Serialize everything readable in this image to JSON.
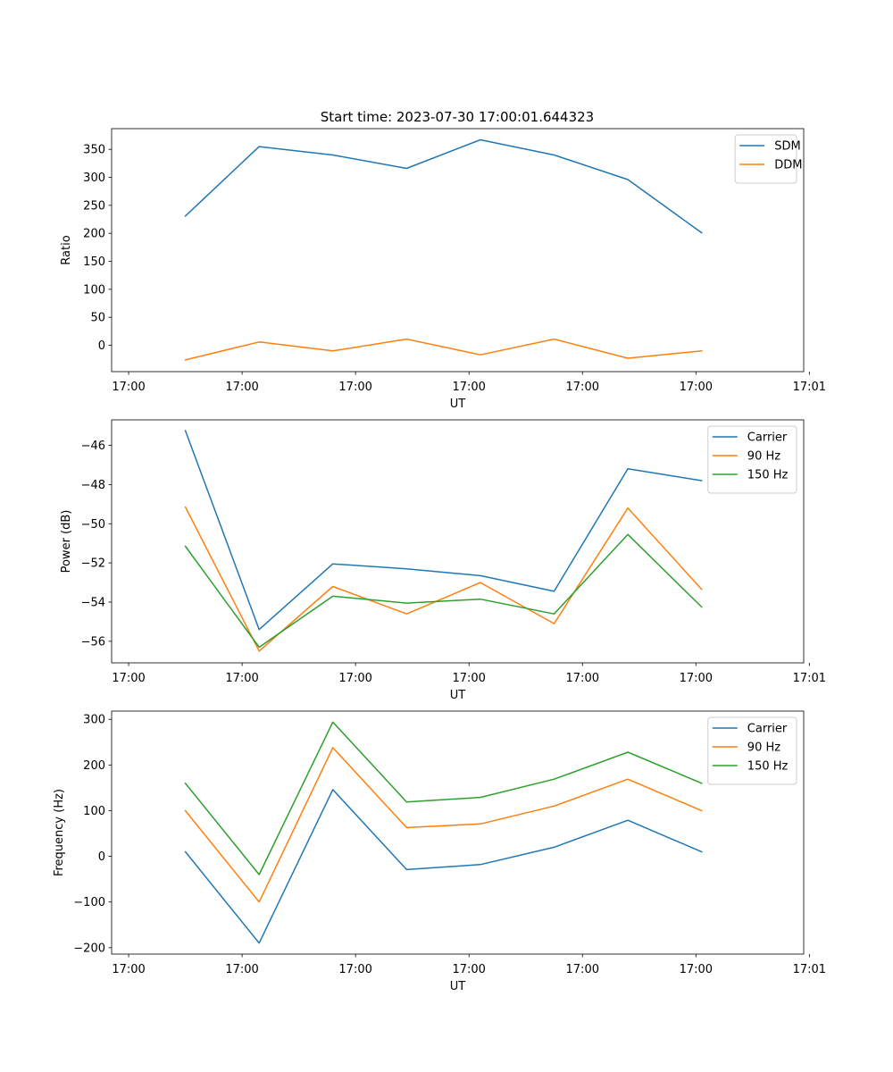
{
  "figure_title": "Start time: 2023-07-30 17:00:01.644323",
  "x_tick_labels": [
    "17:00",
    "17:00",
    "17:00",
    "17:00",
    "17:00",
    "17:00",
    "17:01"
  ],
  "colors": {
    "blue": "#1f77b4",
    "orange": "#ff7f0e",
    "green": "#2ca02c"
  },
  "chart_data": [
    {
      "type": "line",
      "title": "Start time: 2023-07-30 17:00:01.644323",
      "xlabel": "UT",
      "ylabel": "Ratio",
      "x": [
        0.5,
        1.15,
        1.8,
        2.45,
        3.1,
        3.75,
        4.4,
        5.05
      ],
      "xlim": [
        -0.15,
        5.95
      ],
      "ylim": [
        -47,
        387
      ],
      "yticks": [
        0,
        50,
        100,
        150,
        200,
        250,
        300,
        350
      ],
      "ytick_labels": [
        "0",
        "50",
        "100",
        "150",
        "200",
        "250",
        "300",
        "350"
      ],
      "legend_location": "top-right",
      "series": [
        {
          "name": "SDM",
          "color": "#1f77b4",
          "values": [
            231,
            355,
            340,
            316,
            367,
            340,
            296,
            201
          ]
        },
        {
          "name": "DDM",
          "color": "#ff7f0e",
          "values": [
            -26,
            6,
            -10,
            11,
            -17,
            11,
            -23,
            -10
          ]
        }
      ]
    },
    {
      "type": "line",
      "title": "",
      "xlabel": "UT",
      "ylabel": "Power (dB)",
      "x": [
        0.5,
        1.15,
        1.8,
        2.45,
        3.1,
        3.75,
        4.4,
        5.05
      ],
      "xlim": [
        -0.15,
        5.95
      ],
      "ylim": [
        -57.1,
        -44.7
      ],
      "yticks": [
        -56,
        -54,
        -52,
        -50,
        -48,
        -46
      ],
      "ytick_labels": [
        "−56",
        "−54",
        "−52",
        "−50",
        "−48",
        "−46"
      ],
      "legend_location": "top-right",
      "series": [
        {
          "name": "Carrier",
          "color": "#1f77b4",
          "values": [
            -45.25,
            -55.4,
            -52.05,
            -52.3,
            -52.65,
            -53.45,
            -47.2,
            -47.8
          ]
        },
        {
          "name": "90 Hz",
          "color": "#ff7f0e",
          "values": [
            -49.15,
            -56.5,
            -53.2,
            -54.6,
            -53.0,
            -55.1,
            -49.2,
            -53.35
          ]
        },
        {
          "name": "150 Hz",
          "color": "#2ca02c",
          "values": [
            -51.15,
            -56.3,
            -53.7,
            -54.05,
            -53.85,
            -54.6,
            -50.55,
            -54.25
          ]
        }
      ]
    },
    {
      "type": "line",
      "title": "",
      "xlabel": "UT",
      "ylabel": "Frequency (Hz)",
      "x": [
        0.5,
        1.15,
        1.8,
        2.45,
        3.1,
        3.75,
        4.4,
        5.05
      ],
      "xlim": [
        -0.15,
        5.95
      ],
      "ylim": [
        -214,
        318
      ],
      "yticks": [
        -200,
        -100,
        0,
        100,
        200,
        300
      ],
      "ytick_labels": [
        "−200",
        "−100",
        "0",
        "100",
        "200",
        "300"
      ],
      "legend_location": "top-right",
      "series": [
        {
          "name": "Carrier",
          "color": "#1f77b4",
          "values": [
            10,
            -190,
            146,
            -29,
            -18,
            20,
            79,
            10
          ]
        },
        {
          "name": "90 Hz",
          "color": "#ff7f0e",
          "values": [
            100,
            -100,
            238,
            63,
            71,
            110,
            169,
            100
          ]
        },
        {
          "name": "150 Hz",
          "color": "#2ca02c",
          "values": [
            160,
            -40,
            294,
            119,
            129,
            169,
            228,
            160
          ]
        }
      ]
    }
  ]
}
